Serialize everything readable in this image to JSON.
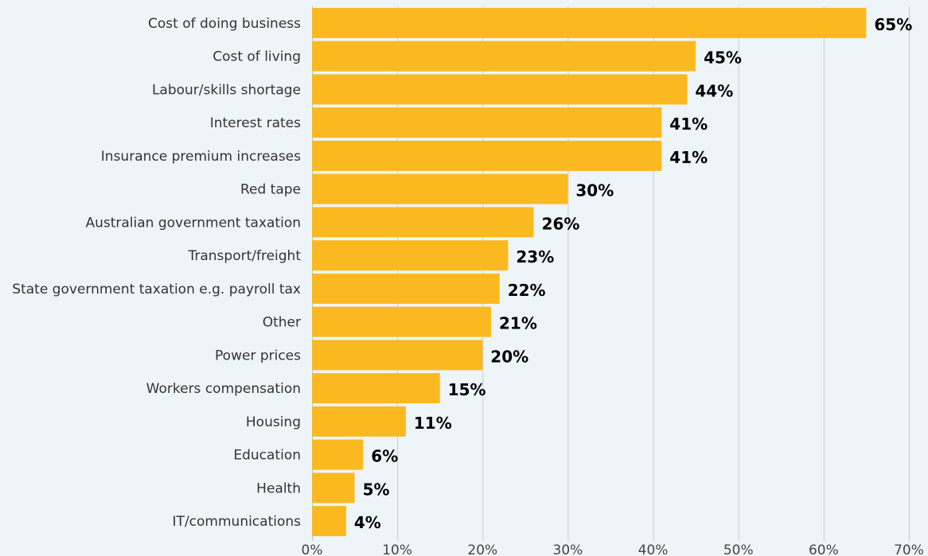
{
  "chart_data": {
    "type": "bar",
    "orientation": "horizontal",
    "title": "",
    "xlabel": "",
    "ylabel": "",
    "categories": [
      "Cost of doing business",
      "Cost of living",
      "Labour/skills shortage",
      "Interest rates",
      "Insurance premium increases",
      "Red tape",
      "Australian government taxation",
      "Transport/freight",
      "State government taxation e.g. payroll tax",
      "Other",
      "Power prices",
      "Workers compensation",
      "Housing",
      "Education",
      "Health",
      "IT/communications"
    ],
    "values": [
      65,
      45,
      44,
      41,
      41,
      30,
      26,
      23,
      22,
      21,
      20,
      15,
      11,
      6,
      5,
      4
    ],
    "value_labels": [
      "65%",
      "45%",
      "44%",
      "41%",
      "41%",
      "30%",
      "26%",
      "23%",
      "22%",
      "21%",
      "20%",
      "15%",
      "11%",
      "6%",
      "5%",
      "4%"
    ],
    "xlim": [
      0,
      70
    ],
    "xticks": [
      0,
      10,
      20,
      30,
      40,
      50,
      60,
      70
    ],
    "xtick_labels": [
      "0%",
      "10%",
      "20%",
      "30%",
      "40%",
      "50%",
      "60%",
      "70%"
    ],
    "grid": true,
    "legend": "none",
    "bar_color": "#fbb921",
    "background_color": "#eef5f8"
  }
}
